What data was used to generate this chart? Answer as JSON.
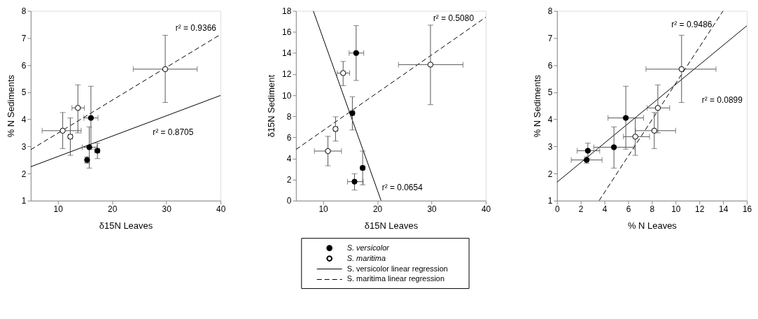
{
  "chart_data": [
    {
      "type": "scatter",
      "xlabel": "δ15N Leaves",
      "ylabel": "% N Sediments",
      "xlim": [
        5,
        40
      ],
      "ylim": [
        1,
        8
      ],
      "xticks": [
        10,
        20,
        30,
        40
      ],
      "yticks": [
        1,
        2,
        3,
        4,
        5,
        6,
        7,
        8
      ],
      "grid": false,
      "legend": false,
      "series": [
        {
          "type": "line",
          "line_style": "solid",
          "color": "#000000",
          "x": [
            5,
            40
          ],
          "values": [
            2.25,
            4.88
          ]
        },
        {
          "type": "line",
          "line_style": "dashed",
          "color": "#000000",
          "x": [
            5,
            40
          ],
          "values": [
            2.88,
            7.13
          ]
        },
        {
          "marker": "circle",
          "color": "#000000",
          "x": [
            16.1,
            15.8,
            15.4,
            17.3
          ],
          "values": [
            4.05,
            2.97,
            2.5,
            2.84
          ],
          "errors": [
            [
              2.9,
              5.22
            ],
            [
              2.2,
              3.72
            ],
            [
              2.38,
              2.62
            ],
            [
              2.55,
              3.12
            ]
          ],
          "xerrors": [
            [
              14.8,
              17.4
            ],
            [
              14.5,
              17.2
            ],
            [
              15.0,
              15.8
            ],
            [
              16.8,
              17.7
            ]
          ]
        },
        {
          "marker": "circle",
          "color": "#ffffff",
          "x": [
            10.9,
            12.3,
            13.7,
            29.8
          ],
          "values": [
            3.58,
            3.36,
            4.42,
            5.85
          ],
          "errors": [
            [
              2.92,
              4.25
            ],
            [
              2.67,
              4.05
            ],
            [
              3.5,
              5.27
            ],
            [
              4.62,
              7.1
            ]
          ],
          "xerrors": [
            [
              7.1,
              14.3
            ],
            [
              11.9,
              12.7
            ],
            [
              12.6,
              14.9
            ],
            [
              23.9,
              35.7
            ]
          ]
        }
      ],
      "annotations": [
        "r² = 0.9366",
        "r² = 0.8705"
      ]
    },
    {
      "type": "scatter",
      "xlabel": "δ15N Leaves",
      "ylabel": "δ15N Sediment",
      "xlim": [
        5,
        40
      ],
      "ylim": [
        0,
        18
      ],
      "xticks": [
        10,
        20,
        30,
        40
      ],
      "yticks": [
        0,
        2,
        4,
        6,
        8,
        10,
        12,
        14,
        16,
        18
      ],
      "grid": false,
      "legend": "bottom",
      "series": [
        {
          "type": "line",
          "name": "S. versicolor linear regression",
          "line_style": "solid",
          "color": "#000000",
          "x": [
            8.2,
            20.7
          ],
          "values": [
            18,
            0
          ]
        },
        {
          "type": "line",
          "name": "S. maritima linear regression",
          "line_style": "dashed",
          "color": "#000000",
          "x": [
            5,
            40
          ],
          "values": [
            4.85,
            17.4
          ]
        },
        {
          "name": "S. versicolor",
          "marker": "circle",
          "color": "#000000",
          "x": [
            16.1,
            15.8,
            15.4,
            17.3
          ],
          "values": [
            14.0,
            1.8,
            8.3,
            3.1
          ],
          "errors": [
            [
              11.4,
              16.6
            ],
            [
              1.0,
              2.55
            ],
            [
              6.7,
              9.85
            ],
            [
              1.5,
              4.7
            ]
          ],
          "xerrors": [
            [
              14.8,
              17.5
            ],
            [
              14.5,
              17.4
            ],
            [
              15.0,
              15.8
            ],
            [
              16.9,
              17.7
            ]
          ]
        },
        {
          "name": "S. maritima",
          "marker": "circle",
          "color": "#ffffff",
          "x": [
            10.9,
            12.3,
            13.7,
            29.8
          ],
          "values": [
            4.7,
            6.8,
            12.1,
            12.9
          ],
          "errors": [
            [
              3.3,
              6.1
            ],
            [
              5.65,
              7.95
            ],
            [
              10.9,
              13.2
            ],
            [
              9.1,
              16.65
            ]
          ],
          "xerrors": [
            [
              8.4,
              13.4
            ],
            [
              11.9,
              12.7
            ],
            [
              12.6,
              14.9
            ],
            [
              23.9,
              35.8
            ]
          ]
        }
      ],
      "annotations": [
        "r² = 0.5080",
        "r² = 0.0654"
      ]
    },
    {
      "type": "scatter",
      "xlabel": "% N Leaves",
      "ylabel": "% N Sediments",
      "xlim": [
        0,
        16
      ],
      "ylim": [
        1,
        8
      ],
      "xticks": [
        0,
        2,
        4,
        6,
        8,
        10,
        12,
        14,
        16
      ],
      "yticks": [
        1,
        2,
        3,
        4,
        5,
        6,
        7,
        8
      ],
      "grid": false,
      "legend": false,
      "series": [
        {
          "type": "line",
          "line_style": "solid",
          "color": "#000000",
          "x": [
            0,
            16
          ],
          "values": [
            1.68,
            7.45
          ]
        },
        {
          "type": "line",
          "line_style": "dashed",
          "color": "#000000",
          "x": [
            3.55,
            14.0
          ],
          "values": [
            1,
            8
          ]
        },
        {
          "marker": "circle",
          "color": "#000000",
          "x": [
            5.8,
            4.8,
            2.5,
            2.6
          ],
          "values": [
            4.05,
            2.97,
            2.5,
            2.84
          ],
          "errors": [
            [
              2.9,
              5.22
            ],
            [
              2.2,
              3.72
            ],
            [
              2.38,
              2.62
            ],
            [
              2.55,
              3.12
            ]
          ],
          "xerrors": [
            [
              4.3,
              7.3
            ],
            [
              3.1,
              6.5
            ],
            [
              1.2,
              3.8
            ],
            [
              1.7,
              3.6
            ]
          ]
        },
        {
          "marker": "circle",
          "color": "#ffffff",
          "x": [
            8.2,
            6.6,
            8.5,
            10.5
          ],
          "values": [
            3.58,
            3.36,
            4.42,
            5.85
          ],
          "errors": [
            [
              2.92,
              4.25
            ],
            [
              2.67,
              4.05
            ],
            [
              3.5,
              5.27
            ],
            [
              4.62,
              7.1
            ]
          ],
          "xerrors": [
            [
              6.6,
              10.0
            ],
            [
              5.6,
              7.8
            ],
            [
              7.6,
              9.5
            ],
            [
              7.5,
              13.4
            ]
          ]
        }
      ],
      "annotations": [
        "r² = 0.9486",
        "r² = 0.0899"
      ]
    }
  ]
}
